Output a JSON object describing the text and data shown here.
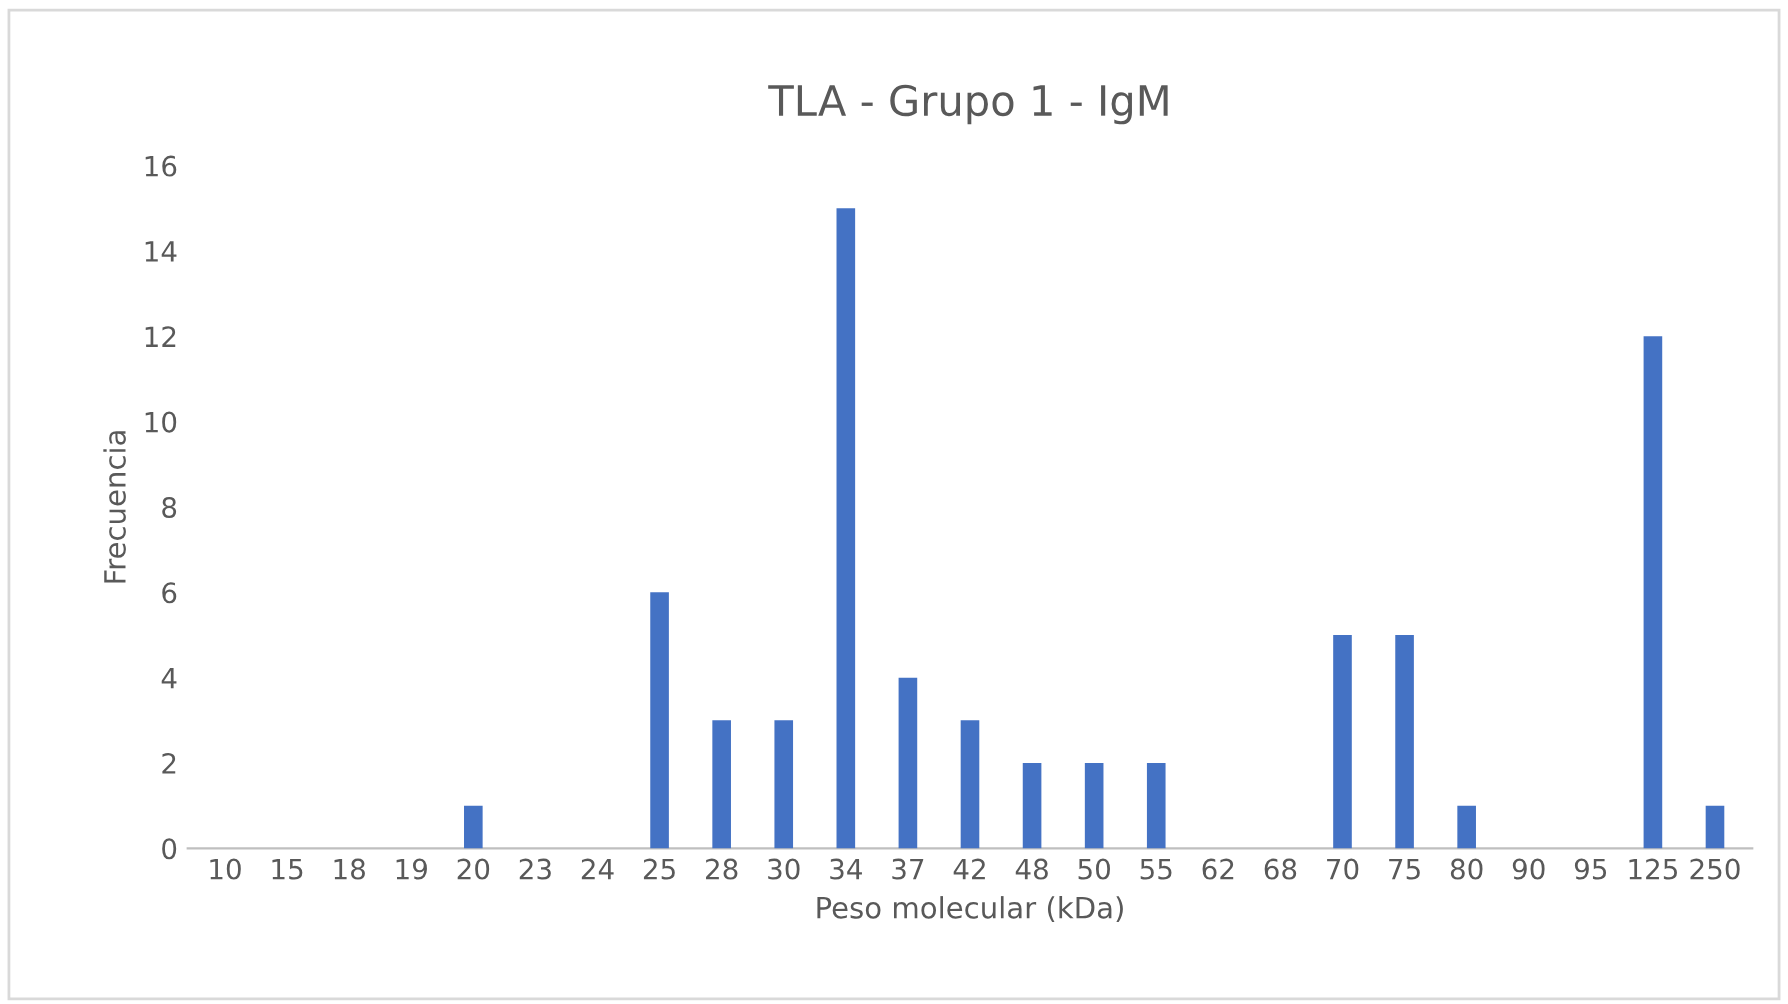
{
  "chart_data": {
    "type": "bar",
    "title": "TLA - Grupo 1 - IgM",
    "xlabel": "Peso molecular (kDa)",
    "ylabel": "Frecuencia",
    "categories": [
      "10",
      "15",
      "18",
      "19",
      "20",
      "23",
      "24",
      "25",
      "28",
      "30",
      "34",
      "37",
      "42",
      "48",
      "50",
      "55",
      "62",
      "68",
      "70",
      "75",
      "80",
      "90",
      "95",
      "125",
      "250"
    ],
    "values": [
      0,
      0,
      0,
      0,
      1,
      0,
      0,
      6,
      3,
      3,
      15,
      4,
      3,
      2,
      2,
      2,
      0,
      0,
      5,
      5,
      1,
      0,
      0,
      12,
      1
    ],
    "color": "#4472c4",
    "ylim": [
      0,
      16
    ],
    "yticks": [
      0,
      2,
      4,
      6,
      8,
      10,
      12,
      14,
      16
    ],
    "grid": false,
    "legend": false
  }
}
